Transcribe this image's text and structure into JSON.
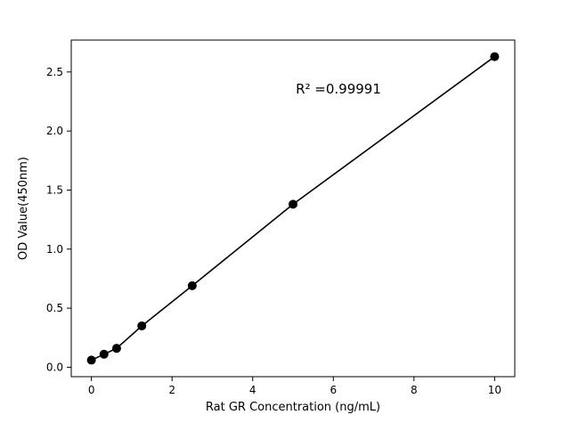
{
  "chart_data": {
    "type": "scatter",
    "title": "",
    "xlabel": "Rat GR Concentration (ng/mL)",
    "ylabel": "OD Value(450nm)",
    "annotation": "R² =0.99991",
    "x": [
      0,
      0.3125,
      0.625,
      1.25,
      2.5,
      5,
      10
    ],
    "y": [
      0.06,
      0.11,
      0.16,
      0.35,
      0.69,
      1.38,
      2.63
    ],
    "xticks": [
      0,
      2,
      4,
      6,
      8,
      10
    ],
    "xtick_labels": [
      "0",
      "2",
      "4",
      "6",
      "8",
      "10"
    ],
    "yticks": [
      0.0,
      0.5,
      1.0,
      1.5,
      2.0,
      2.5
    ],
    "ytick_labels": [
      "0.0",
      "0.5",
      "1.0",
      "1.5",
      "2.0",
      "2.5"
    ],
    "xlim": [
      -0.5,
      10.5
    ],
    "ylim": [
      -0.08,
      2.77
    ],
    "line": true,
    "marker": "circle",
    "marker_color": "#000000",
    "line_color": "#000000",
    "background": "#ffffff",
    "grid": false,
    "legend": "none"
  }
}
